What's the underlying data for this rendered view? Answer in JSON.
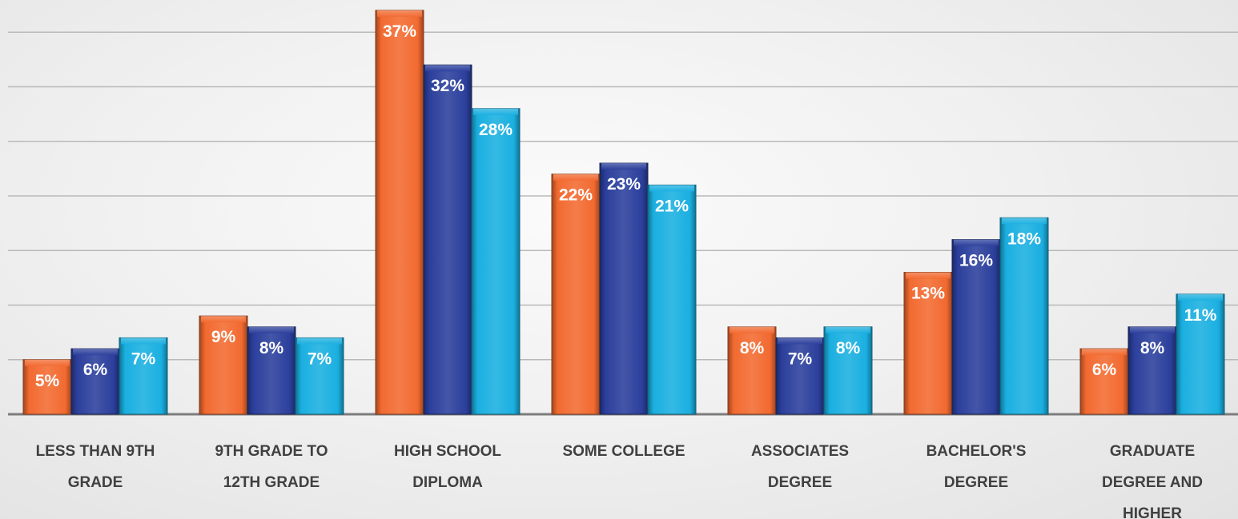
{
  "chart_data": {
    "type": "bar",
    "categories": [
      [
        "LESS THAN 9TH",
        "GRADE"
      ],
      [
        "9TH GRADE TO",
        "12TH GRADE"
      ],
      [
        "HIGH SCHOOL",
        "DIPLOMA"
      ],
      [
        "SOME COLLEGE"
      ],
      [
        "ASSOCIATES",
        "DEGREE"
      ],
      [
        "BACHELOR'S",
        "DEGREE"
      ],
      [
        "GRADUATE",
        "DEGREE AND",
        "HIGHER"
      ]
    ],
    "series": [
      {
        "values": [
          5,
          9,
          37,
          22,
          8,
          13,
          6
        ],
        "labels": [
          "5%",
          "9%",
          "37%",
          "22%",
          "8%",
          "13%",
          "6%"
        ],
        "color": "#f26a30"
      },
      {
        "values": [
          6,
          8,
          32,
          23,
          7,
          16,
          8
        ],
        "labels": [
          "6%",
          "8%",
          "32%",
          "23%",
          "7%",
          "16%",
          "8%"
        ],
        "color": "#2b3f9c"
      },
      {
        "values": [
          7,
          7,
          28,
          21,
          8,
          18,
          11
        ],
        "labels": [
          "7%",
          "7%",
          "28%",
          "21%",
          "8%",
          "18%",
          "11%"
        ],
        "color": "#1aafe0"
      }
    ],
    "ylim": [
      0,
      40
    ],
    "grid": true,
    "legend": "none",
    "title": "",
    "xlabel": "",
    "ylabel": ""
  }
}
